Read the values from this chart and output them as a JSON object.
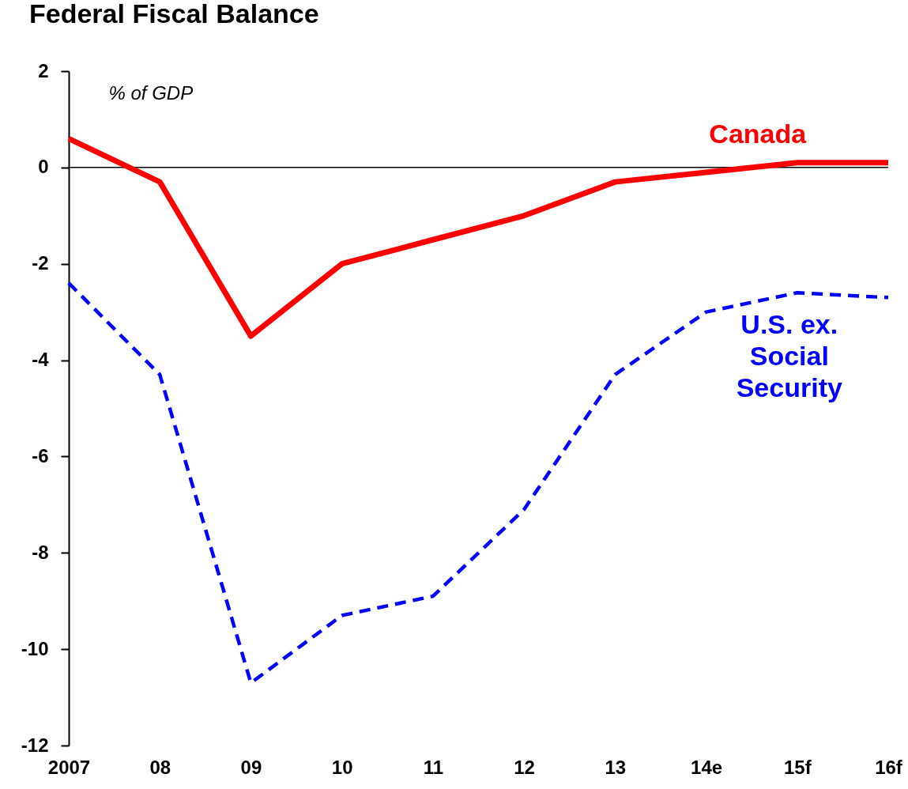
{
  "chart_data": {
    "type": "line",
    "title": "Federal Fiscal Balance",
    "ylabel": "% of GDP",
    "categories": [
      "2007",
      "08",
      "09",
      "10",
      "11",
      "12",
      "13",
      "14e",
      "15f",
      "16f"
    ],
    "series": [
      {
        "name": "Canada",
        "color": "#ff0000",
        "line_style": "solid",
        "values": [
          0.6,
          -0.3,
          -3.5,
          -2.0,
          -1.5,
          -1.0,
          -0.3,
          -0.1,
          0.1,
          0.1
        ]
      },
      {
        "name": "U.S. ex. Social Security",
        "color": "#0000ff",
        "line_style": "dashed",
        "values": [
          -2.4,
          -4.3,
          -10.7,
          -9.3,
          -8.9,
          -7.1,
          -4.3,
          -3.0,
          -2.6,
          -2.7
        ]
      }
    ],
    "ylim": [
      -12,
      2
    ],
    "yticks": [
      -12,
      -10,
      -8,
      -6,
      -4,
      -2,
      0,
      2
    ],
    "ref_lines": [
      {
        "axis": "y",
        "value": 0,
        "color": "#000000"
      }
    ],
    "grid": false,
    "legend": false,
    "marker": "none"
  }
}
